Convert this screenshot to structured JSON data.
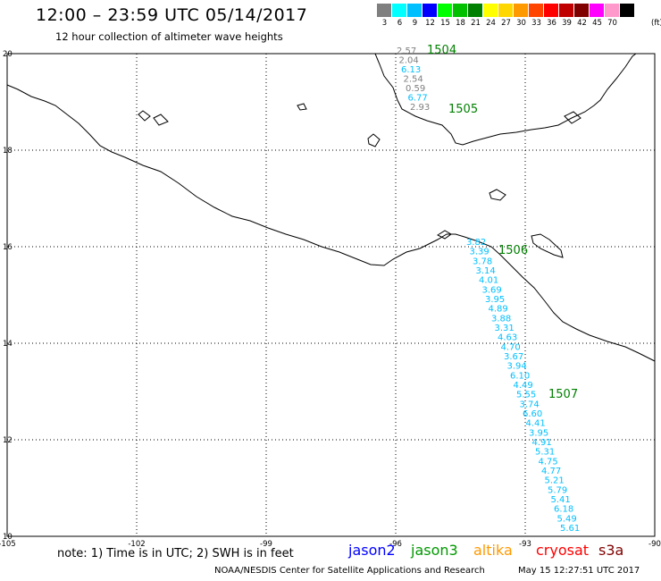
{
  "header": {
    "title": "12:00 – 23:59 UTC 05/14/2017",
    "subtitle": "12 hour collection of altimeter wave heights"
  },
  "colorbar": {
    "unit": "(ft)",
    "levels": [
      {
        "label": "3",
        "color": "#7f7f7f"
      },
      {
        "label": "6",
        "color": "#00ffff"
      },
      {
        "label": "9",
        "color": "#00bfff"
      },
      {
        "label": "12",
        "color": "#0000ff"
      },
      {
        "label": "15",
        "color": "#00ff00"
      },
      {
        "label": "18",
        "color": "#00c000"
      },
      {
        "label": "21",
        "color": "#008000"
      },
      {
        "label": "24",
        "color": "#ffff00"
      },
      {
        "label": "27",
        "color": "#ffd700"
      },
      {
        "label": "30",
        "color": "#ff9900"
      },
      {
        "label": "33",
        "color": "#ff4500"
      },
      {
        "label": "36",
        "color": "#ff0000"
      },
      {
        "label": "39",
        "color": "#c00000"
      },
      {
        "label": "42",
        "color": "#800000"
      },
      {
        "label": "45",
        "color": "#ff00ff"
      },
      {
        "label": "70",
        "color": "#ff99cc"
      },
      {
        "label": "",
        "color": "#000000"
      }
    ]
  },
  "axes": {
    "lon_labels": [
      "-105",
      "-102",
      "-99",
      "-96",
      "-93",
      "-90"
    ],
    "lat_labels": [
      "20",
      "18",
      "16",
      "14",
      "12",
      "10"
    ]
  },
  "passes": [
    {
      "time": "1504",
      "color_label": "#008000"
    },
    {
      "time": "1505",
      "color_label": "#008000"
    },
    {
      "time": "1506",
      "color_label": "#008000"
    },
    {
      "time": "1507",
      "color_label": "#008000"
    }
  ],
  "track1": {
    "values": [
      "2.57",
      "2.04",
      "6.13",
      "2.54",
      "0.59",
      "6.77",
      "2.93"
    ],
    "colors": [
      "#7f7f7f",
      "#7f7f7f",
      "#00bfff",
      "#7f7f7f",
      "#7f7f7f",
      "#00bfff",
      "#7f7f7f"
    ]
  },
  "track2": {
    "values": [
      "3.82",
      "3.39",
      "3.78",
      "3.14",
      "4.01",
      "3.69",
      "3.95",
      "4.89",
      "3.88",
      "3.31",
      "4.63",
      "4.70",
      "3.67",
      "3.94",
      "6.10",
      "4.49",
      "5.55",
      "3.74",
      "6.60",
      "4.41",
      "3.95",
      "4.91",
      "5.31",
      "4.75",
      "4.77",
      "5.21",
      "5.79",
      "5.41",
      "6.18",
      "5.49",
      "5.61"
    ],
    "color": "#00bfff"
  },
  "legend": {
    "note": "note: 1) Time is in UTC; 2) SWH is in feet",
    "satellites": [
      {
        "name": "jason2",
        "color": "#0000ff"
      },
      {
        "name": "jason3",
        "color": "#009900"
      },
      {
        "name": "altika",
        "color": "#ff9900"
      },
      {
        "name": "cryosat",
        "color": "#ff0000"
      },
      {
        "name": "s3a",
        "color": "#800000"
      }
    ]
  },
  "footer": {
    "credit": "NOAA/NESDIS Center for Satellite Applications and Research",
    "timestamp": "May 15 12:27:51 UTC 2017"
  }
}
